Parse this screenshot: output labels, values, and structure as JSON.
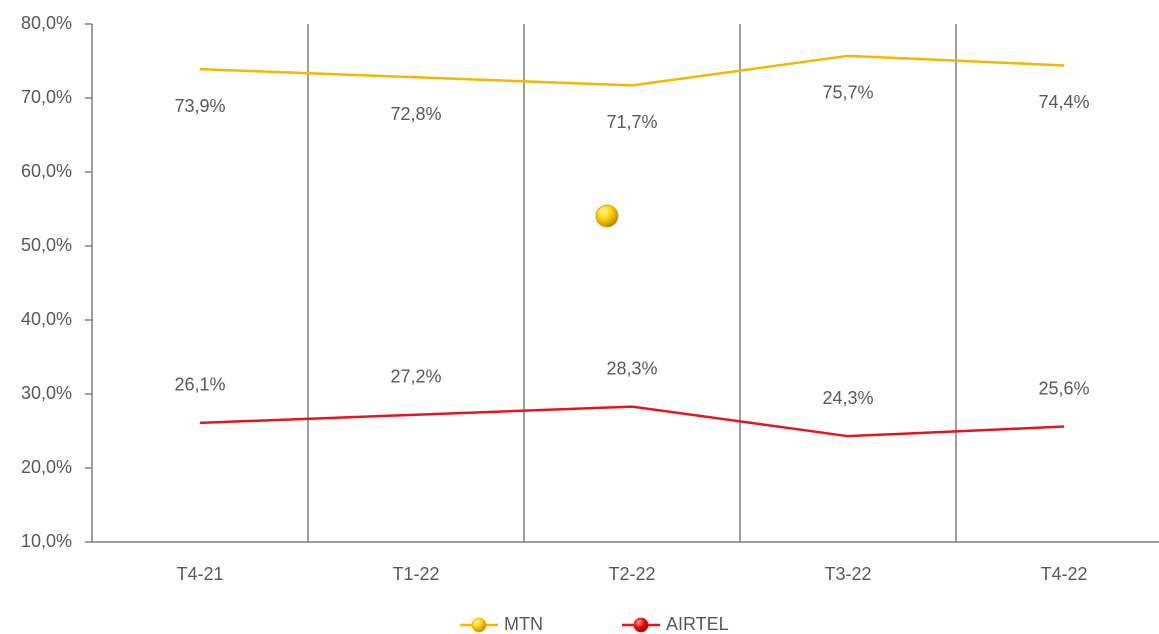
{
  "chart_data": {
    "type": "line",
    "categories": [
      "T4-21",
      "T1-22",
      "T2-22",
      "T3-22",
      "T4-22"
    ],
    "series": [
      {
        "name": "MTN",
        "color": "#f5b800",
        "values": [
          73.9,
          72.8,
          71.7,
          75.7,
          74.4
        ],
        "value_labels": [
          "73,9%",
          "72,8%",
          "71,7%",
          "75,7%",
          "74,4%"
        ]
      },
      {
        "name": "AIRTEL",
        "color": "#e8141b",
        "values": [
          26.1,
          27.2,
          28.3,
          24.3,
          25.6
        ],
        "value_labels": [
          "26,1%",
          "27,2%",
          "28,3%",
          "24,3%",
          "25,6%"
        ]
      }
    ],
    "ylim": [
      10,
      80
    ],
    "yticks": [
      {
        "value": 10,
        "label": "10,0%"
      },
      {
        "value": 20,
        "label": "20,0%"
      },
      {
        "value": 30,
        "label": "30,0%"
      },
      {
        "value": 40,
        "label": "40,0%"
      },
      {
        "value": 50,
        "label": "50,0%"
      },
      {
        "value": 60,
        "label": "60,0%"
      },
      {
        "value": 70,
        "label": "70,0%"
      },
      {
        "value": 80,
        "label": "80,0%"
      }
    ],
    "legend": "bottom"
  }
}
